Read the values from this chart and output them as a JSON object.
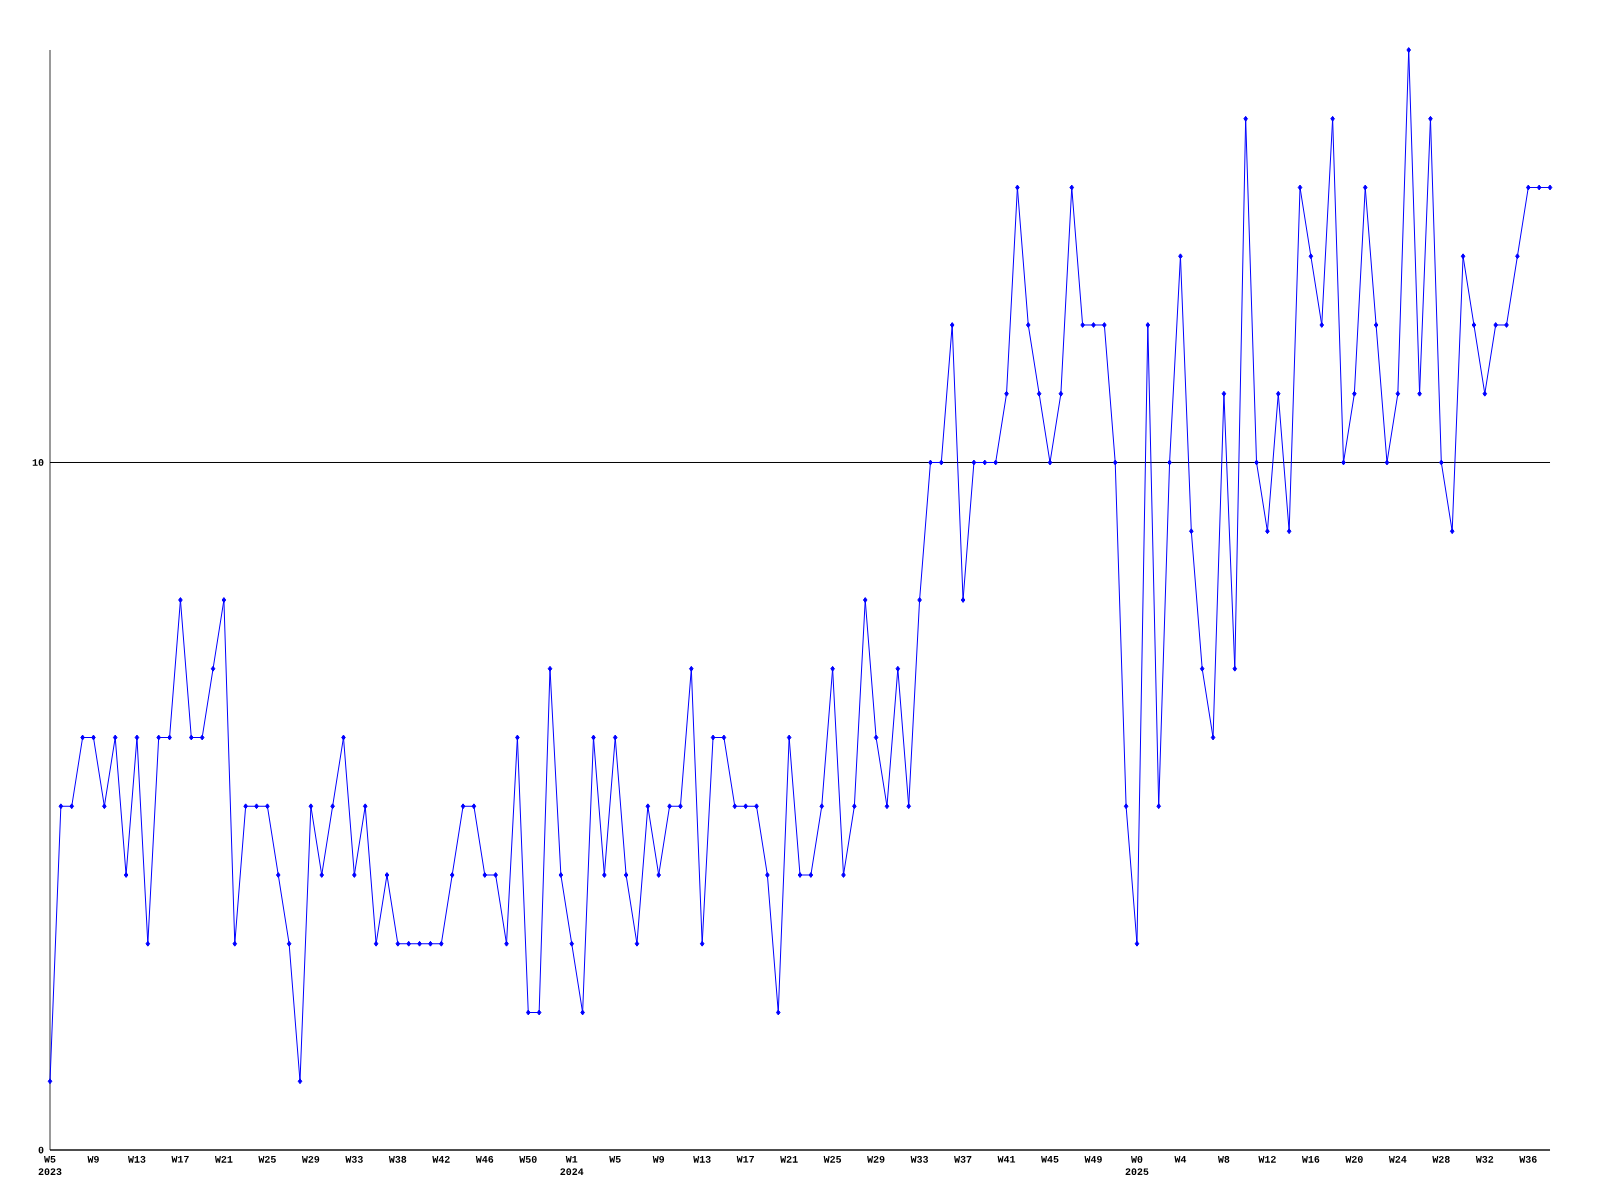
{
  "chart_data": {
    "type": "line",
    "categories": [
      "W5",
      null,
      null,
      null,
      "W9",
      null,
      null,
      null,
      "W13",
      null,
      null,
      null,
      "W17",
      null,
      null,
      null,
      "W21",
      null,
      null,
      null,
      "W25",
      null,
      null,
      null,
      "W29",
      null,
      null,
      null,
      "W33",
      null,
      null,
      null,
      "W38",
      null,
      null,
      null,
      "W42",
      null,
      null,
      null,
      "W46",
      null,
      null,
      null,
      "W50",
      null,
      null,
      null,
      "W1",
      null,
      null,
      null,
      "W5",
      null,
      null,
      null,
      "W9",
      null,
      null,
      null,
      "W13",
      null,
      null,
      null,
      "W17",
      null,
      null,
      null,
      "W21",
      null,
      null,
      null,
      "W25",
      null,
      null,
      null,
      "W29",
      null,
      null,
      null,
      "W33",
      null,
      null,
      null,
      "W37",
      null,
      null,
      null,
      "W41",
      null,
      null,
      null,
      "W45",
      null,
      null,
      null,
      "W49",
      null,
      null,
      null,
      "W0",
      null,
      null,
      null,
      "W4",
      null,
      null,
      null,
      "W8",
      null,
      null,
      null,
      "W12",
      null,
      null,
      null,
      "W16",
      null,
      null,
      null,
      "W20",
      null,
      null,
      null,
      "W24",
      null,
      null,
      null,
      "W28",
      null,
      null,
      null,
      "W32",
      null,
      null,
      null,
      "W36",
      null,
      null
    ],
    "series": [
      {
        "color": "#0000ff",
        "values": [
          1,
          5,
          5,
          6,
          6,
          5,
          6,
          4,
          6,
          3,
          6,
          6,
          8,
          6,
          6,
          7,
          8,
          3,
          5,
          5,
          5,
          4,
          3,
          1,
          5,
          4,
          5,
          6,
          4,
          5,
          3,
          4,
          3,
          3,
          3,
          3,
          3,
          4,
          5,
          5,
          4,
          4,
          3,
          6,
          2,
          2,
          7,
          4,
          3,
          2,
          6,
          4,
          6,
          4,
          3,
          5,
          4,
          5,
          5,
          7,
          3,
          6,
          6,
          5,
          5,
          5,
          4,
          2,
          6,
          4,
          4,
          5,
          7,
          4,
          5,
          8,
          6,
          5,
          7,
          5,
          8,
          10,
          10,
          12,
          8,
          10,
          10,
          10,
          11,
          14,
          12,
          11,
          10,
          11,
          14,
          12,
          12,
          12,
          10,
          5,
          3,
          12,
          5,
          10,
          13,
          9,
          7,
          6,
          11,
          7,
          15,
          10,
          9,
          11,
          9,
          14,
          13,
          12,
          15,
          10,
          11,
          14,
          12,
          10,
          11,
          16,
          11,
          15,
          10,
          9,
          13,
          12,
          11,
          12,
          12,
          13,
          14,
          14,
          14
        ]
      }
    ],
    "ylim": [
      0,
      16
    ],
    "yticks": [
      0,
      10
    ],
    "grid": "y",
    "marker": "diamond",
    "line_style": "solid",
    "annotations": [
      "2023",
      "2024",
      "2025"
    ]
  }
}
